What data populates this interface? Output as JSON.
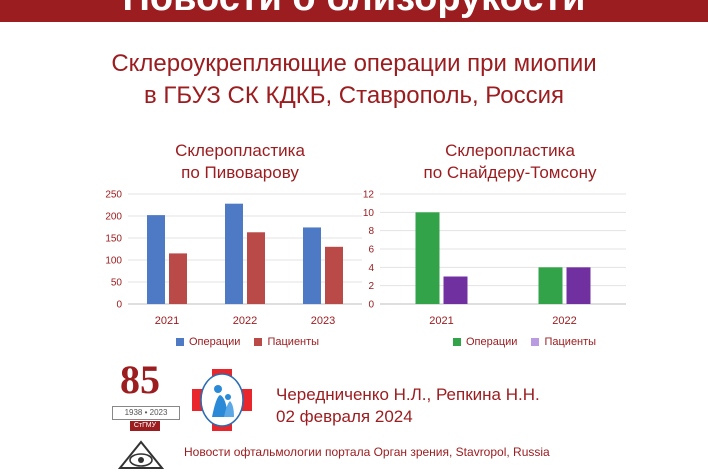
{
  "banner": {
    "title": "Новости о близорукости"
  },
  "header": {
    "title_line1": "Склероукрепляющие операции при миопии",
    "title_line2": "в ГБУЗ СК КДКБ, Ставрополь, Россия"
  },
  "colors": {
    "accent": "#9b1d20",
    "operations_left": "#4e79c4",
    "patients_left": "#b94a48",
    "operations_right": "#33a34a",
    "patients_right": "#7030a0",
    "patients_right_legend": "#b89be0"
  },
  "chart_data": [
    {
      "type": "bar",
      "title_line1": "Склеропластика",
      "title_line2": "по Пивоварову",
      "categories": [
        "2021",
        "2022",
        "2023"
      ],
      "series": [
        {
          "name": "Операции",
          "values": [
            202,
            228,
            174
          ]
        },
        {
          "name": "Пациенты",
          "values": [
            115,
            163,
            130
          ]
        }
      ],
      "ylim": [
        0,
        250
      ],
      "yticks": [
        "0",
        "50",
        "100",
        "150",
        "200",
        "250"
      ],
      "grid": true,
      "legend": "bottom"
    },
    {
      "type": "bar",
      "title_line1": "Склеропластика",
      "title_line2": "по Снайдеру-Томсону",
      "categories": [
        "2021",
        "2022"
      ],
      "series": [
        {
          "name": "Операции",
          "values": [
            10,
            4
          ]
        },
        {
          "name": "Пациенты",
          "values": [
            3,
            4
          ]
        }
      ],
      "ylim": [
        0,
        12
      ],
      "yticks": [
        "0",
        "2",
        "4",
        "6",
        "8",
        "10",
        "12"
      ],
      "grid": true,
      "legend": "bottom"
    }
  ],
  "logos": {
    "anniversary_number": "85",
    "anniversary_years": "1938 • 2023",
    "university": "СтГМУ"
  },
  "authors": {
    "names": "Чередниченко Н.Л., Репкина Н.Н.",
    "date": "02 февраля 2024"
  },
  "footer": {
    "line1": "Новости офтальмологии портала Орган зрения, Stavropol, Russia"
  }
}
